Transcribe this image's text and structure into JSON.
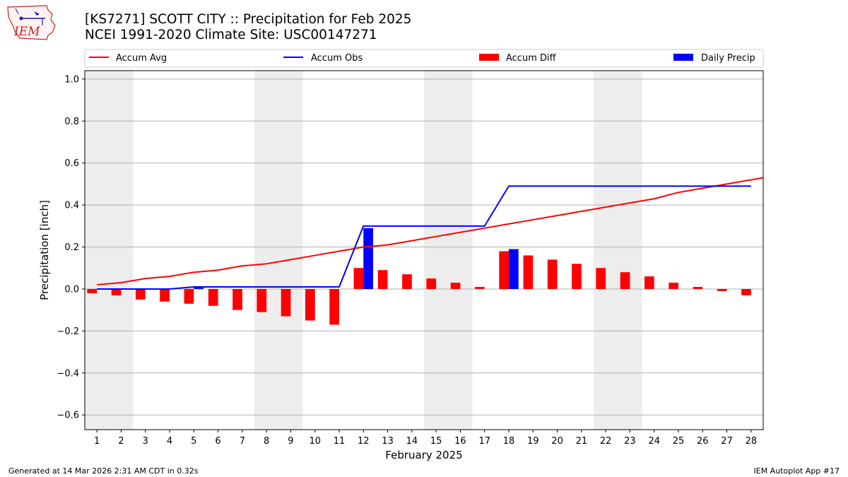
{
  "header": {
    "title_line1": "[KS7271] SCOTT CITY :: Precipitation for Feb 2025",
    "title_line2": "NCEI 1991-2020 Climate Site: USC00147271"
  },
  "logo": {
    "text": "IEM"
  },
  "footer": {
    "left": "Generated at 14 Mar 2026 2:31 AM CDT in 0.32s",
    "right": "IEM Autoplot App #17"
  },
  "colors": {
    "avg": "#ff0000",
    "obs": "#0000ff",
    "diff": "#ff0000",
    "daily": "#0000ff",
    "weekend": "#ededed",
    "grid": "#b0b0b0"
  },
  "chart_data": {
    "type": "bar",
    "title": "[KS7271] SCOTT CITY :: Precipitation for Feb 2025",
    "xlabel": "February 2025",
    "ylabel": "Precipitation [inch]",
    "categories": [
      "1",
      "2",
      "3",
      "4",
      "5",
      "6",
      "7",
      "8",
      "9",
      "10",
      "11",
      "12",
      "13",
      "14",
      "15",
      "16",
      "17",
      "18",
      "19",
      "20",
      "21",
      "22",
      "23",
      "24",
      "25",
      "26",
      "27",
      "28"
    ],
    "xlim": [
      0.5,
      28.5
    ],
    "ylim": [
      -0.67,
      1.04
    ],
    "yticks": [
      1.0,
      0.8,
      0.6,
      0.4,
      0.2,
      0.0,
      -0.2,
      -0.4,
      -0.6
    ],
    "ytick_labels": [
      "1.0",
      "0.8",
      "0.6",
      "0.4",
      "0.2",
      "0.0",
      "−0.2",
      "−0.4",
      "−0.6"
    ],
    "grid": true,
    "legend": [
      "Accum Avg",
      "Accum Obs",
      "Accum Diff",
      "Daily Precip"
    ],
    "weekend_shading": [
      [
        0.5,
        2.5
      ],
      [
        7.5,
        9.5
      ],
      [
        14.5,
        16.5
      ],
      [
        21.5,
        23.5
      ]
    ],
    "series": [
      {
        "name": "Accum Avg",
        "kind": "line",
        "x": [
          1,
          2,
          3,
          4,
          5,
          6,
          7,
          8,
          9,
          10,
          11,
          12,
          13,
          14,
          15,
          16,
          17,
          18,
          19,
          20,
          21,
          22,
          23,
          24,
          25,
          26,
          27,
          28,
          28.5
        ],
        "values": [
          0.02,
          0.03,
          0.05,
          0.06,
          0.08,
          0.09,
          0.11,
          0.12,
          0.14,
          0.16,
          0.18,
          0.2,
          0.21,
          0.23,
          0.25,
          0.27,
          0.29,
          0.31,
          0.33,
          0.35,
          0.37,
          0.39,
          0.41,
          0.43,
          0.46,
          0.48,
          0.5,
          0.52,
          0.53
        ]
      },
      {
        "name": "Accum Obs",
        "kind": "line",
        "x": [
          1,
          2,
          3,
          4,
          5,
          6,
          7,
          8,
          9,
          10,
          11,
          12,
          13,
          14,
          15,
          16,
          17,
          18,
          19,
          20,
          21,
          22,
          23,
          24,
          25,
          26,
          27,
          28
        ],
        "values": [
          0,
          0,
          0,
          0,
          0.01,
          0.01,
          0.01,
          0.01,
          0.01,
          0.01,
          0.01,
          0.3,
          0.3,
          0.3,
          0.3,
          0.3,
          0.3,
          0.49,
          0.49,
          0.49,
          0.49,
          0.49,
          0.49,
          0.49,
          0.49,
          0.49,
          0.49,
          0.49
        ]
      },
      {
        "name": "Accum Diff",
        "kind": "bar",
        "x": [
          1,
          2,
          3,
          4,
          5,
          6,
          7,
          8,
          9,
          10,
          11,
          12,
          13,
          14,
          15,
          16,
          17,
          18,
          19,
          20,
          21,
          22,
          23,
          24,
          25,
          26,
          27,
          28
        ],
        "values": [
          -0.02,
          -0.03,
          -0.05,
          -0.06,
          -0.07,
          -0.08,
          -0.1,
          -0.11,
          -0.13,
          -0.15,
          -0.17,
          0.1,
          0.09,
          0.07,
          0.05,
          0.03,
          0.01,
          0.18,
          0.16,
          0.14,
          0.12,
          0.1,
          0.08,
          0.06,
          0.03,
          0.01,
          -0.01,
          -0.03
        ]
      },
      {
        "name": "Daily Precip",
        "kind": "bar",
        "x": [
          5,
          12,
          18
        ],
        "values": [
          0.01,
          0.29,
          0.19
        ]
      }
    ]
  }
}
